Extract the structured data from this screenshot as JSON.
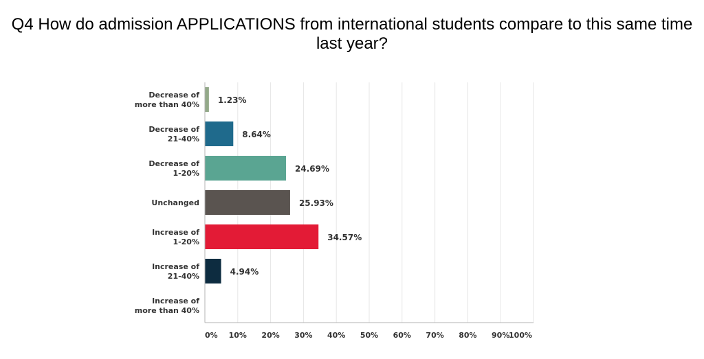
{
  "chart_data": {
    "type": "bar",
    "orientation": "horizontal",
    "title": "Q4 How do admission APPLICATIONS from international students compare to this same time last year?",
    "categories": [
      [
        "Decrease of",
        "more than 40%"
      ],
      [
        "Decrease of",
        "21-40%"
      ],
      [
        "Decrease of",
        "1-20%"
      ],
      [
        "Unchanged"
      ],
      [
        "Increase of",
        "1-20%"
      ],
      [
        "Increase of",
        "21-40%"
      ],
      [
        "Increase of",
        "more than 40%"
      ]
    ],
    "values": [
      1.23,
      8.64,
      24.69,
      25.93,
      34.57,
      4.94,
      0
    ],
    "value_labels": [
      "1.23%",
      "8.64%",
      "24.69%",
      "25.93%",
      "34.57%",
      "4.94%",
      ""
    ],
    "colors": [
      "#93a989",
      "#1f6a8c",
      "#5aa592",
      "#5a5450",
      "#e31b36",
      "#0d2c40",
      "#cccccc"
    ],
    "xlim": [
      0,
      100
    ],
    "xticks": [
      "0%",
      "10%",
      "20%",
      "30%",
      "40%",
      "50%",
      "60%",
      "70%",
      "80%",
      "90%",
      "100%"
    ],
    "grid": true,
    "legend": "none"
  }
}
